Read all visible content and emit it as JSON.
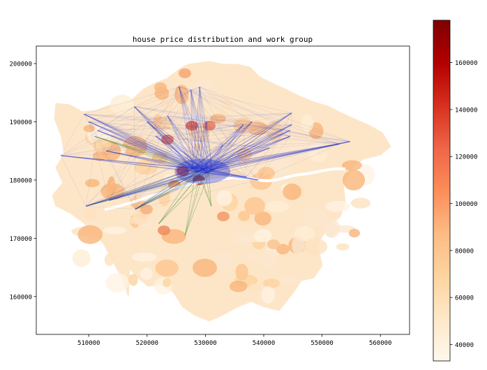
{
  "chart_data": [
    {
      "type": "choropleth-map-with-flow-lines",
      "title": "house price distribution and work group",
      "xlabel": "",
      "ylabel": "",
      "xlim": [
        501000,
        565000
      ],
      "ylim": [
        153500,
        203000
      ],
      "x_ticks": [
        510000,
        520000,
        530000,
        540000,
        550000,
        560000
      ],
      "y_ticks": [
        160000,
        170000,
        180000,
        190000,
        200000
      ],
      "x_tick_labels": [
        "510000",
        "520000",
        "530000",
        "540000",
        "550000",
        "560000"
      ],
      "y_tick_labels": [
        "160000",
        "170000",
        "180000",
        "190000",
        "200000"
      ],
      "grid": false,
      "colormap": "OrRd",
      "flow_line_colors": {
        "main": "#1a2bd0",
        "secondary": "#1f7a1f"
      },
      "hub": [
        529500,
        181500
      ],
      "blue_flow_endpoints": [
        [
          505200,
          184200
        ],
        [
          509200,
          191300
        ],
        [
          510000,
          190000
        ],
        [
          511500,
          188500
        ],
        [
          517800,
          192600
        ],
        [
          520000,
          190000
        ],
        [
          521500,
          187500
        ],
        [
          523500,
          191000
        ],
        [
          525500,
          196000
        ],
        [
          527500,
          195500
        ],
        [
          529000,
          196000
        ],
        [
          530200,
          190000
        ],
        [
          533000,
          186000
        ],
        [
          536500,
          189500
        ],
        [
          538000,
          190000
        ],
        [
          544800,
          191500
        ],
        [
          544800,
          189500
        ],
        [
          544500,
          188500
        ],
        [
          544500,
          187500
        ],
        [
          541000,
          185500
        ],
        [
          554800,
          186600
        ],
        [
          553000,
          186200
        ],
        [
          539000,
          180000
        ],
        [
          537000,
          180500
        ],
        [
          513500,
          176500
        ],
        [
          509500,
          175500
        ],
        [
          518000,
          175000
        ],
        [
          513000,
          185000
        ]
      ],
      "green_flow_endpoints": [
        [
          509500,
          175500
        ],
        [
          526500,
          170500
        ],
        [
          531000,
          175500
        ],
        [
          518000,
          175000
        ],
        [
          511000,
          187500
        ],
        [
          522000,
          172500
        ]
      ]
    },
    {
      "type": "colorbar",
      "colormap": "OrRd",
      "range": [
        33000,
        178000
      ],
      "ticks": [
        40000,
        60000,
        80000,
        100000,
        120000,
        140000,
        160000
      ],
      "tick_labels": [
        "40000",
        "60000",
        "80000",
        "100000",
        "120000",
        "140000",
        "160000"
      ]
    }
  ]
}
